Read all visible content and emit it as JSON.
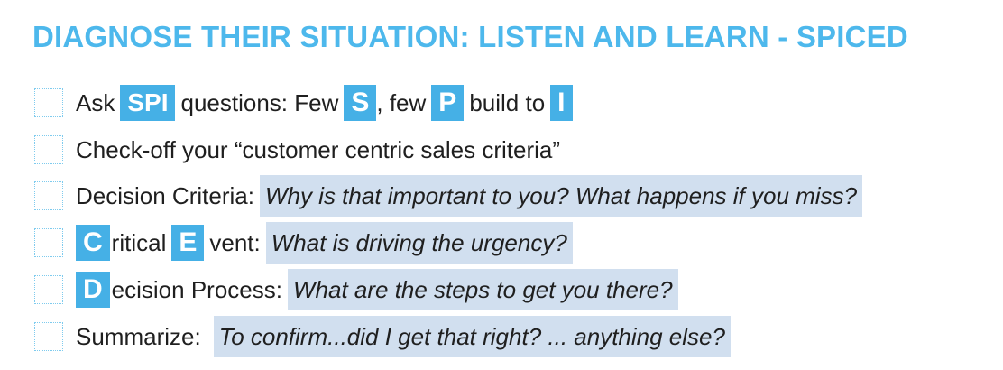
{
  "title": "DIAGNOSE THEIR SITUATION: LISTEN AND LEARN - SPICED",
  "colors": {
    "title": "#4db8ec",
    "badge": "#45b0e6",
    "highlight": "#d1dfef",
    "checkbox_border": "#7ecbee"
  },
  "rows": [
    {
      "ask": "Ask",
      "badge_spi": "SPI",
      "questions_few": "questions: Few",
      "badge_s": "S",
      "comma_few": ", few",
      "badge_p": "P",
      "build_to": "build to",
      "badge_i": "I"
    },
    {
      "text": "Check-off your “customer centric sales criteria”"
    },
    {
      "label": "Decision Criteria:",
      "prompt": "Why is that important to you? What happens if you miss?"
    },
    {
      "badge_c": "C",
      "ritical": "ritical",
      "badge_e": "E",
      "vent": "vent:",
      "prompt": "What is driving the urgency?"
    },
    {
      "badge_d": "D",
      "ecision": "ecision Process:",
      "prompt": "What are the steps to get you there?"
    },
    {
      "label": "Summarize:",
      "prompt": "To confirm...did I get that right? ... anything else?"
    }
  ]
}
